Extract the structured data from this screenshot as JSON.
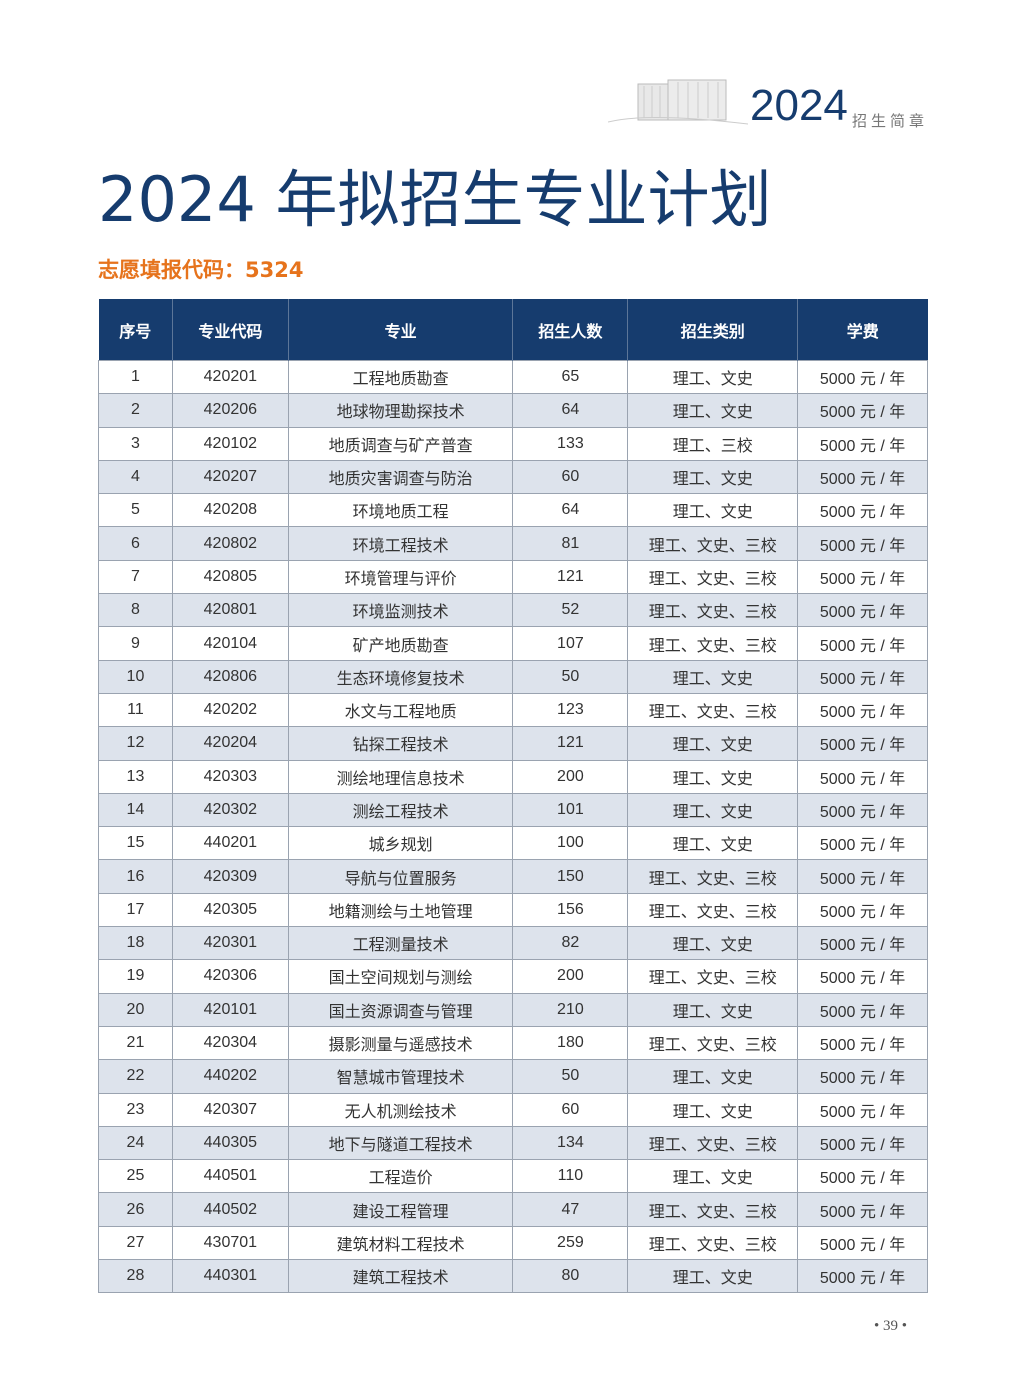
{
  "header": {
    "year": "2024",
    "brochure": "招生简章"
  },
  "title": "2024 年拟招生专业计划",
  "application_code": "志愿填报代码：5324",
  "table": {
    "columns": [
      "序号",
      "专业代码",
      "专业",
      "招生人数",
      "招生类别",
      "学费"
    ],
    "rows": [
      [
        "1",
        "420201",
        "工程地质勘查",
        "65",
        "理工、文史",
        "5000 元 / 年"
      ],
      [
        "2",
        "420206",
        "地球物理勘探技术",
        "64",
        "理工、文史",
        "5000 元 / 年"
      ],
      [
        "3",
        "420102",
        "地质调查与矿产普查",
        "133",
        "理工、三校",
        "5000 元 / 年"
      ],
      [
        "4",
        "420207",
        "地质灾害调查与防治",
        "60",
        "理工、文史",
        "5000 元 / 年"
      ],
      [
        "5",
        "420208",
        "环境地质工程",
        "64",
        "理工、文史",
        "5000 元 / 年"
      ],
      [
        "6",
        "420802",
        "环境工程技术",
        "81",
        "理工、文史、三校",
        "5000 元 / 年"
      ],
      [
        "7",
        "420805",
        "环境管理与评价",
        "121",
        "理工、文史、三校",
        "5000 元 / 年"
      ],
      [
        "8",
        "420801",
        "环境监测技术",
        "52",
        "理工、文史、三校",
        "5000 元 / 年"
      ],
      [
        "9",
        "420104",
        "矿产地质勘查",
        "107",
        "理工、文史、三校",
        "5000 元 / 年"
      ],
      [
        "10",
        "420806",
        "生态环境修复技术",
        "50",
        "理工、文史",
        "5000 元 / 年"
      ],
      [
        "11",
        "420202",
        "水文与工程地质",
        "123",
        "理工、文史、三校",
        "5000 元 / 年"
      ],
      [
        "12",
        "420204",
        "钻探工程技术",
        "121",
        "理工、文史",
        "5000 元 / 年"
      ],
      [
        "13",
        "420303",
        "测绘地理信息技术",
        "200",
        "理工、文史",
        "5000 元 / 年"
      ],
      [
        "14",
        "420302",
        "测绘工程技术",
        "101",
        "理工、文史",
        "5000 元 / 年"
      ],
      [
        "15",
        "440201",
        "城乡规划",
        "100",
        "理工、文史",
        "5000 元 / 年"
      ],
      [
        "16",
        "420309",
        "导航与位置服务",
        "150",
        "理工、文史、三校",
        "5000 元 / 年"
      ],
      [
        "17",
        "420305",
        "地籍测绘与土地管理",
        "156",
        "理工、文史、三校",
        "5000 元 / 年"
      ],
      [
        "18",
        "420301",
        "工程测量技术",
        "82",
        "理工、文史",
        "5000 元 / 年"
      ],
      [
        "19",
        "420306",
        "国土空间规划与测绘",
        "200",
        "理工、文史、三校",
        "5000 元 / 年"
      ],
      [
        "20",
        "420101",
        "国土资源调查与管理",
        "210",
        "理工、文史",
        "5000 元 / 年"
      ],
      [
        "21",
        "420304",
        "摄影测量与遥感技术",
        "180",
        "理工、文史、三校",
        "5000 元 / 年"
      ],
      [
        "22",
        "440202",
        "智慧城市管理技术",
        "50",
        "理工、文史",
        "5000 元 / 年"
      ],
      [
        "23",
        "420307",
        "无人机测绘技术",
        "60",
        "理工、文史",
        "5000 元 / 年"
      ],
      [
        "24",
        "440305",
        "地下与隧道工程技术",
        "134",
        "理工、文史、三校",
        "5000 元 / 年"
      ],
      [
        "25",
        "440501",
        "工程造价",
        "110",
        "理工、文史",
        "5000 元 / 年"
      ],
      [
        "26",
        "440502",
        "建设工程管理",
        "47",
        "理工、文史、三校",
        "5000 元 / 年"
      ],
      [
        "27",
        "430701",
        "建筑材料工程技术",
        "259",
        "理工、文史、三校",
        "5000 元 / 年"
      ],
      [
        "28",
        "440301",
        "建筑工程技术",
        "80",
        "理工、文史",
        "5000 元 / 年"
      ]
    ]
  },
  "page_number": "• 39 •"
}
